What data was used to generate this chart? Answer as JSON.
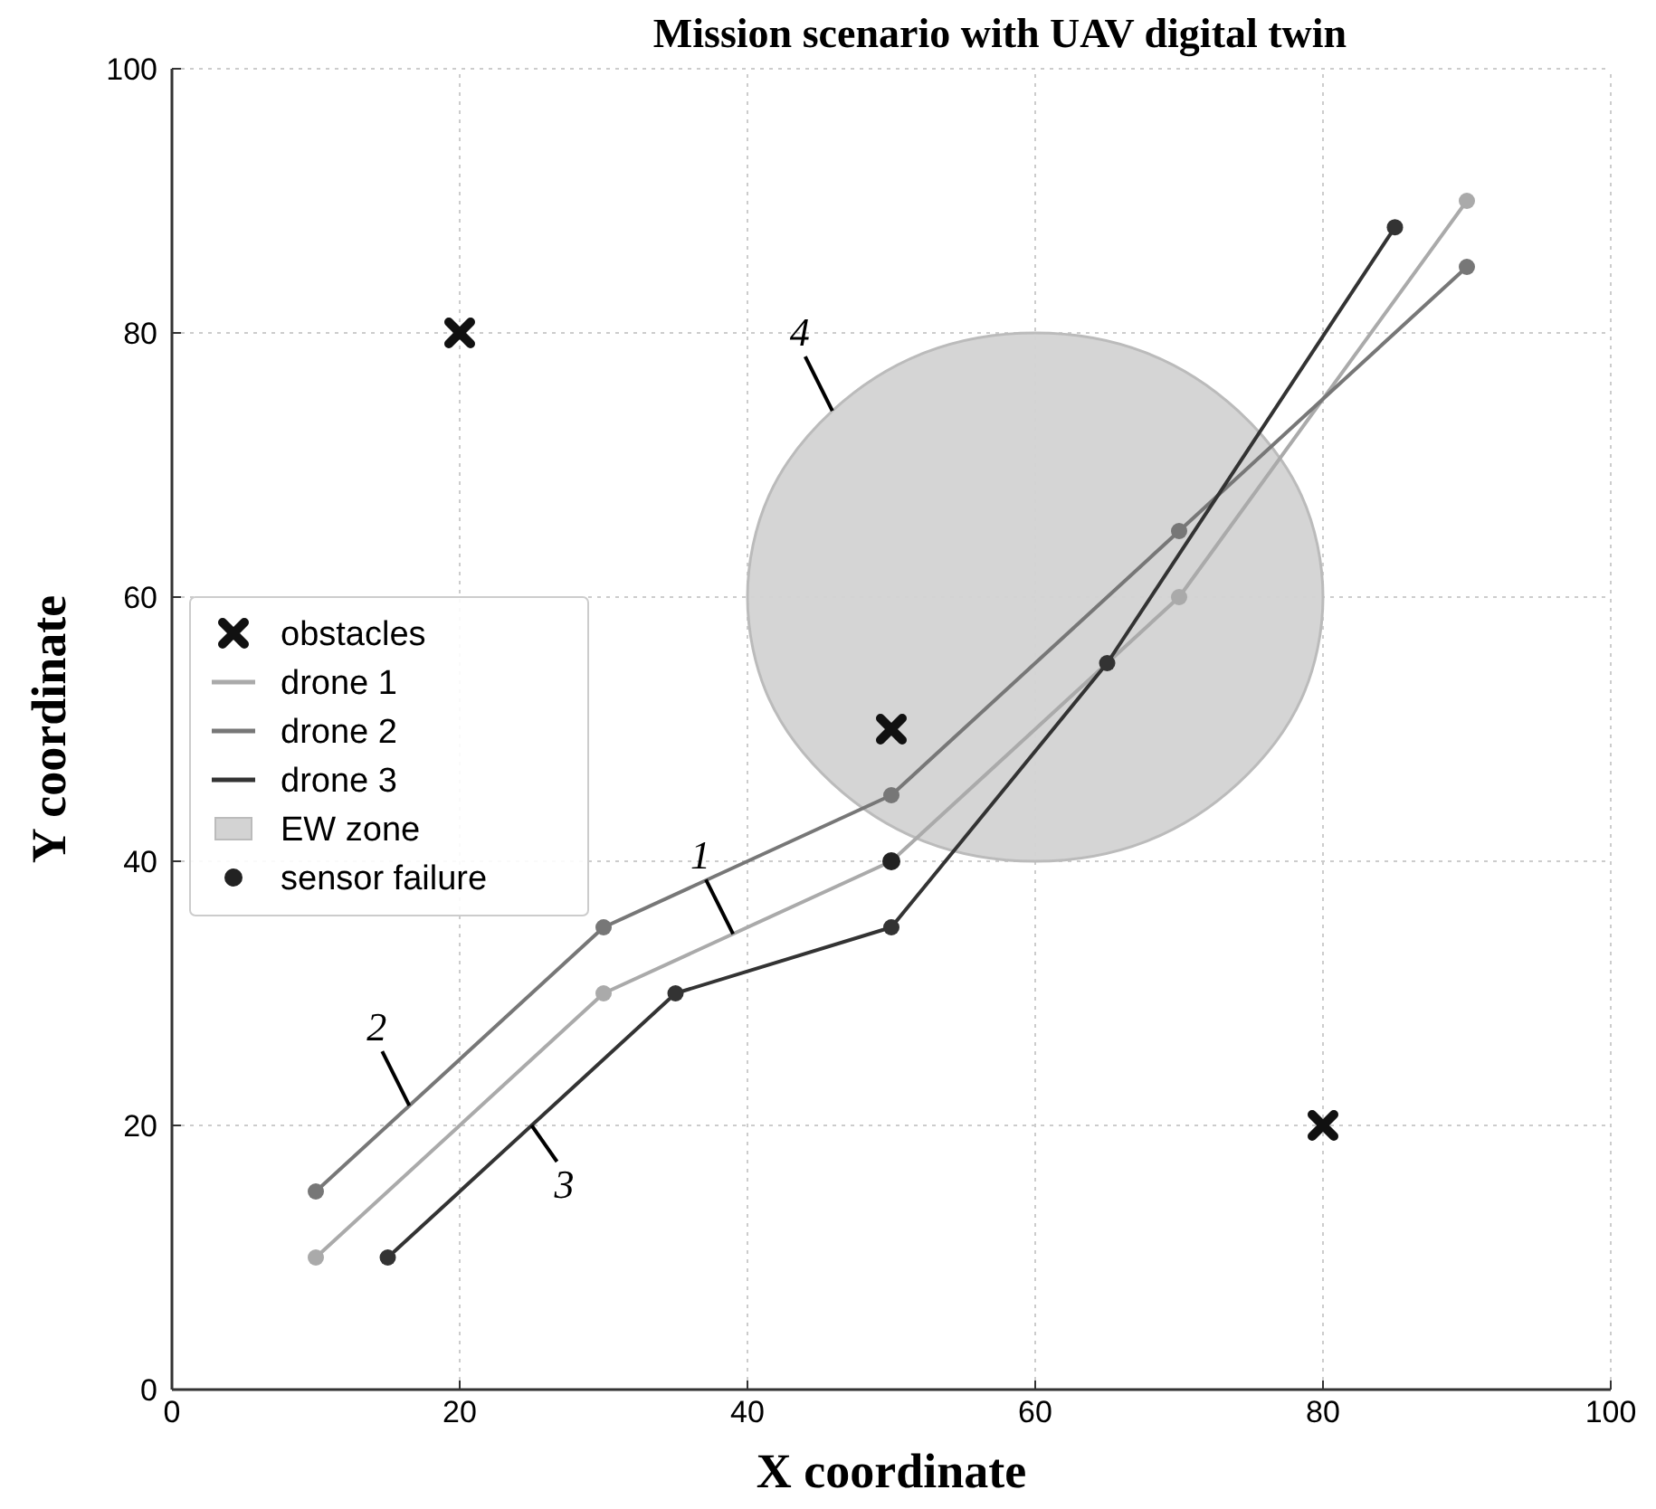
{
  "chart_data": {
    "type": "line",
    "title": "Mission scenario with UAV digital twin",
    "xlabel": "X coordinate",
    "ylabel": "Y coordinate",
    "xlim": [
      0,
      100
    ],
    "ylim": [
      0,
      100
    ],
    "xticks": [
      0,
      20,
      40,
      60,
      80,
      100
    ],
    "yticks": [
      0,
      20,
      40,
      60,
      80,
      100
    ],
    "grid": true,
    "legend": "left",
    "marker": "circle",
    "line_style": "solid",
    "series": [
      {
        "name": "obstacles",
        "type": "scatter",
        "marker": "cross",
        "color": "#111111",
        "x": [
          20,
          50,
          80
        ],
        "values": [
          80,
          50,
          20
        ]
      },
      {
        "name": "drone 1",
        "color": "#aaaaaa",
        "x": [
          10,
          30,
          50,
          70,
          90
        ],
        "values": [
          10,
          30,
          40,
          60,
          90
        ]
      },
      {
        "name": "drone 2",
        "color": "#777777",
        "x": [
          10,
          30,
          50,
          70,
          90
        ],
        "values": [
          15,
          35,
          45,
          65,
          85
        ]
      },
      {
        "name": "drone 3",
        "color": "#333333",
        "x": [
          15,
          35,
          50,
          65,
          85
        ],
        "values": [
          10,
          30,
          35,
          55,
          88
        ]
      },
      {
        "name": "EW zone",
        "type": "area",
        "marker": "none",
        "color": "#d3d3d3",
        "x": [
          80,
          78.5,
          74.1,
          67.7,
          60,
          52.3,
          45.9,
          41.5,
          40,
          41.5,
          45.9,
          52.3,
          60,
          67.7,
          74.1,
          78.5
        ],
        "values": [
          60,
          67.7,
          74.1,
          78.5,
          80,
          78.5,
          74.1,
          67.7,
          60,
          52.3,
          45.9,
          41.5,
          40,
          41.5,
          45.9,
          52.3
        ]
      },
      {
        "name": "sensor failure",
        "type": "scatter",
        "marker": "circle",
        "color": "#222222",
        "x": [
          50
        ],
        "values": [
          40
        ]
      }
    ],
    "annotations": [
      {
        "text": "1",
        "x": 39,
        "y": 34.5
      },
      {
        "text": "2",
        "x": 16.5,
        "y": 21.5
      },
      {
        "text": "3",
        "x": 25,
        "y": 20
      },
      {
        "text": "4",
        "x": 45.9,
        "y": 74.1
      }
    ]
  }
}
